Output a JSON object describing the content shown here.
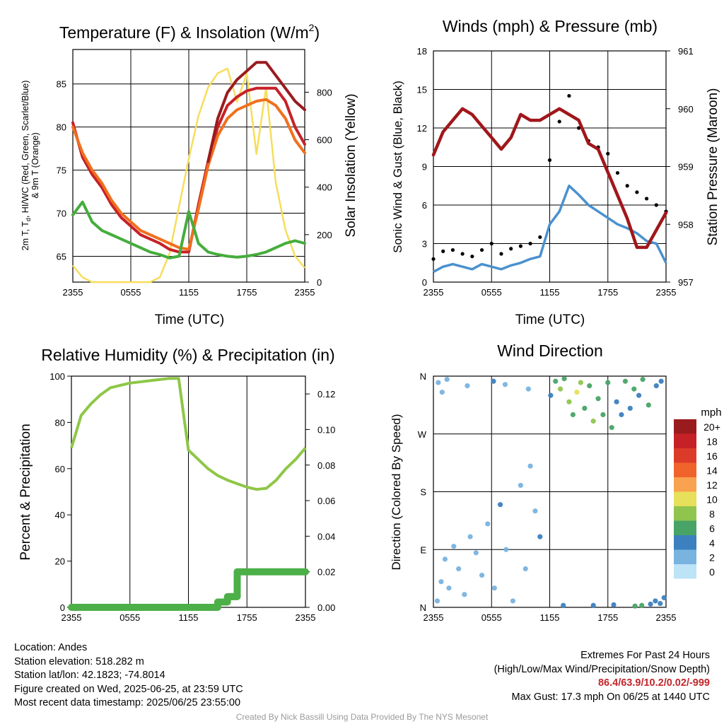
{
  "chart_data": [
    {
      "type": "line",
      "panel": "temperature",
      "title": "Temperature (F) & Insolation (W/m",
      "title_superscript": "2",
      "title_close": ")",
      "xlabel": "Time (UTC)",
      "ylabel_parts": [
        "2m T, T",
        "d",
        ", HI/WC (Red, Green, Scarlet/Blue)"
      ],
      "ylabel_line2": "& 9m T (Orange)",
      "y2label": "Solar Insolation (Yellow)",
      "x_ticks": [
        "2355",
        "0555",
        "1155",
        "1755",
        "2355"
      ],
      "ylim": [
        62,
        89
      ],
      "y_ticks": [
        65,
        70,
        75,
        80,
        85
      ],
      "y2lim": [
        0,
        980
      ],
      "y2_ticks": [
        0,
        200,
        400,
        600,
        800
      ],
      "x_hours": [
        0,
        1,
        2,
        3,
        4,
        5,
        6,
        7,
        8,
        9,
        10,
        11,
        12,
        13,
        14,
        15,
        16,
        17,
        18,
        19,
        20,
        21,
        22,
        23,
        24
      ],
      "series": [
        {
          "color": "#c62127",
          "values": [
            80.5,
            76.5,
            74.5,
            73,
            71,
            69.5,
            68.5,
            67.5,
            67,
            66.5,
            65.8,
            65.5,
            65.5,
            71,
            76,
            80,
            82.5,
            83.5,
            84.2,
            84.5,
            84.5,
            84.5,
            83,
            80,
            78
          ]
        },
        {
          "color": "#f0701e",
          "values": [
            80,
            77,
            75,
            73.5,
            71.5,
            70,
            69,
            68,
            67.5,
            67,
            66.5,
            66,
            65.8,
            70.5,
            75.5,
            79,
            81,
            82,
            82.5,
            83,
            83.2,
            82.5,
            81,
            78.5,
            77
          ]
        },
        {
          "color": "#45ad3c",
          "values": [
            69.8,
            71.3,
            69,
            68,
            67.5,
            67,
            66.5,
            66,
            65.5,
            65.2,
            64.8,
            65,
            70.2,
            66.5,
            65.5,
            65.2,
            65,
            64.9,
            65,
            65.2,
            65.5,
            66,
            66.5,
            66.8,
            66.5
          ]
        },
        {
          "color": "#9a1b1e",
          "values": [
            84,
            null,
            null,
            null,
            null,
            null,
            null,
            null,
            null,
            null,
            null,
            null,
            null,
            null,
            76,
            81,
            84,
            85.5,
            86.5,
            87.5,
            87.5,
            86,
            84.5,
            83,
            82
          ]
        }
      ],
      "insolation": {
        "color": "#f7dd5c",
        "values": [
          70,
          20,
          0,
          0,
          0,
          0,
          0,
          0,
          0,
          20,
          120,
          320,
          520,
          700,
          820,
          880,
          900,
          760,
          880,
          540,
          820,
          420,
          220,
          110,
          60
        ]
      }
    },
    {
      "type": "scatter",
      "panel": "winds",
      "title": "Winds (mph) & Pressure (mb)",
      "xlabel": "Time (UTC)",
      "ylabel": "Sonic Wind & Gust (Blue, Black)",
      "y2label": "Station Pressure (Maroon)",
      "x_ticks": [
        "2355",
        "0555",
        "1155",
        "1755",
        "2355"
      ],
      "ylim": [
        0,
        18
      ],
      "y_ticks": [
        0,
        3,
        6,
        9,
        12,
        15,
        18
      ],
      "y2lim": [
        957,
        961
      ],
      "y2_ticks": [
        957,
        958,
        959,
        960,
        961
      ],
      "x_hours": [
        0,
        1,
        2,
        3,
        4,
        5,
        6,
        7,
        8,
        9,
        10,
        11,
        12,
        13,
        14,
        15,
        16,
        17,
        18,
        19,
        20,
        21,
        22,
        23,
        24
      ],
      "wind": {
        "color": "#4a91cf",
        "values": [
          0.8,
          1.2,
          1.4,
          1.2,
          1.0,
          1.4,
          1.2,
          1.0,
          1.3,
          1.5,
          1.8,
          2.0,
          4.5,
          5.5,
          7.5,
          6.8,
          6.0,
          5.5,
          5.0,
          4.5,
          4.2,
          3.8,
          3.2,
          3.0,
          1.5
        ]
      },
      "gust": {
        "color": "#000000",
        "values": [
          1.8,
          2.4,
          2.5,
          2.2,
          2.0,
          2.5,
          3.0,
          2.2,
          2.6,
          2.8,
          3.0,
          3.5,
          9.5,
          12.5,
          14.5,
          12.0,
          11.0,
          10.5,
          10.0,
          8.5,
          7.5,
          7.0,
          6.5,
          6.0,
          5.5
        ]
      },
      "pressure": {
        "color": "#a0171b",
        "values": [
          959.2,
          959.6,
          959.8,
          960.0,
          959.9,
          959.7,
          959.5,
          959.3,
          959.5,
          959.9,
          959.8,
          959.8,
          959.9,
          960.0,
          959.9,
          959.8,
          959.4,
          959.3,
          958.9,
          958.5,
          958.1,
          957.6,
          957.6,
          957.9,
          958.2
        ]
      }
    },
    {
      "type": "line",
      "panel": "humidity",
      "title": "Relative Humidity (%) & Precipitation (in)",
      "ylabel": "Percent & Precipitation",
      "x_ticks": [
        "2355",
        "0555",
        "1155",
        "1755",
        "2355"
      ],
      "ylim": [
        0,
        100
      ],
      "y_ticks": [
        0,
        20,
        40,
        60,
        80,
        100
      ],
      "y2lim": [
        0,
        0.13
      ],
      "y2_ticks": [
        "0.00",
        "0.02",
        "0.04",
        "0.06",
        "0.08",
        "0.10",
        "0.12"
      ],
      "x_hours": [
        0,
        1,
        2,
        3,
        4,
        5,
        6,
        7,
        8,
        9,
        10,
        11,
        12,
        13,
        14,
        15,
        16,
        17,
        18,
        19,
        20,
        21,
        22,
        23,
        24
      ],
      "rh": {
        "color": "#8ec747",
        "values": [
          69,
          83,
          88,
          92,
          95,
          96,
          97,
          97.5,
          98,
          98.5,
          99,
          99,
          68,
          64,
          60,
          57,
          55,
          53.5,
          52,
          51,
          51.5,
          55,
          60,
          64,
          69
        ]
      },
      "precip": {
        "color": "#4caf48",
        "values": [
          0,
          0,
          0,
          0,
          0,
          0,
          0,
          0,
          0,
          0,
          0,
          0,
          0,
          0,
          0,
          0.003,
          0.006,
          0.02,
          0.02,
          0.02,
          0.02,
          0.02,
          0.02,
          0.02,
          0.02
        ]
      }
    },
    {
      "type": "scatter",
      "panel": "direction",
      "title": "Wind Direction",
      "ylabel": "Direction (Colored By Speed)",
      "x_ticks": [
        "2355",
        "0555",
        "1155",
        "1755",
        "2355"
      ],
      "ylim": [
        0,
        360
      ],
      "y_ticks": [
        "N",
        "E",
        "S",
        "W",
        "N"
      ],
      "legend_title": "mph",
      "legend_labels": [
        "20+",
        "18",
        "16",
        "14",
        "12",
        "10",
        "8",
        "6",
        "4",
        "2",
        "0"
      ],
      "legend_colors": [
        "#9a1b1e",
        "#c62127",
        "#dd3b2a",
        "#f0632b",
        "#f9a24f",
        "#e7e05a",
        "#8fc54e",
        "#48a466",
        "#3c80bf",
        "#79b3e0",
        "#bde3f7"
      ],
      "points": [
        [
          0.4,
          10,
          1
        ],
        [
          0.8,
          40,
          1
        ],
        [
          1.2,
          75,
          1
        ],
        [
          1.6,
          30,
          2
        ],
        [
          2.1,
          95,
          1
        ],
        [
          2.6,
          60,
          1
        ],
        [
          3.2,
          20,
          2
        ],
        [
          3.8,
          110,
          1
        ],
        [
          4.4,
          85,
          2
        ],
        [
          5.0,
          50,
          1
        ],
        [
          5.6,
          130,
          2
        ],
        [
          6.3,
          30,
          1
        ],
        [
          6.9,
          160,
          3
        ],
        [
          7.5,
          90,
          2
        ],
        [
          8.2,
          10,
          1
        ],
        [
          9.0,
          190,
          2
        ],
        [
          9.5,
          60,
          1
        ],
        [
          10.0,
          220,
          1
        ],
        [
          10.5,
          150,
          2
        ],
        [
          11.0,
          110,
          3
        ],
        [
          0.5,
          350,
          2
        ],
        [
          0.9,
          335,
          1
        ],
        [
          1.4,
          355,
          1
        ],
        [
          3.5,
          345,
          1
        ],
        [
          6.2,
          352,
          3
        ],
        [
          7.4,
          347,
          2
        ],
        [
          9.8,
          340,
          1
        ],
        [
          12.1,
          330,
          4
        ],
        [
          12.6,
          352,
          6
        ],
        [
          13.1,
          340,
          8
        ],
        [
          13.5,
          356,
          5
        ],
        [
          14.0,
          320,
          7
        ],
        [
          14.4,
          300,
          6
        ],
        [
          14.8,
          335,
          9
        ],
        [
          15.2,
          350,
          8
        ],
        [
          15.6,
          310,
          6
        ],
        [
          16.1,
          345,
          5
        ],
        [
          16.5,
          290,
          7
        ],
        [
          17.0,
          325,
          6
        ],
        [
          17.5,
          300,
          5
        ],
        [
          18.0,
          350,
          6
        ],
        [
          18.4,
          280,
          5
        ],
        [
          18.9,
          320,
          4
        ],
        [
          19.4,
          300,
          4
        ],
        [
          19.8,
          352,
          5
        ],
        [
          20.3,
          310,
          4
        ],
        [
          20.7,
          340,
          5
        ],
        [
          21.2,
          330,
          4
        ],
        [
          21.6,
          355,
          6
        ],
        [
          22.2,
          315,
          5
        ],
        [
          23.0,
          345,
          4
        ],
        [
          23.5,
          352,
          3
        ],
        [
          20.8,
          2,
          6
        ],
        [
          21.5,
          3,
          5
        ],
        [
          22.4,
          5,
          4
        ],
        [
          22.9,
          10,
          4
        ],
        [
          23.4,
          6,
          3
        ],
        [
          23.8,
          15,
          3
        ],
        [
          16.5,
          3,
          3
        ],
        [
          18.6,
          4,
          3
        ],
        [
          13.4,
          3,
          4
        ]
      ]
    }
  ],
  "info_left": [
    "Location: Andes",
    "Station elevation: 518.282 m",
    "Station lat/lon: 42.1823; -74.8014",
    "Figure created on Wed, 2025-06-25, at 23:59 UTC",
    "Most recent data timestamp: 2025/06/25 23:55:00"
  ],
  "info_right": {
    "heading": "Extremes For Past 24 Hours",
    "subheading": "(High/Low/Max Wind/Precipitation/Snow Depth)",
    "extremes": "86.4/63.9/10.2/0.02/-999",
    "max_gust": "Max Gust: 17.3 mph On 06/25 at 1440 UTC"
  },
  "credit": "Created By Nick Bassill Using Data Provided By The NYS Mesonet",
  "colors": {
    "extremes": "#c1272d",
    "credit": "#9a9a9a"
  }
}
